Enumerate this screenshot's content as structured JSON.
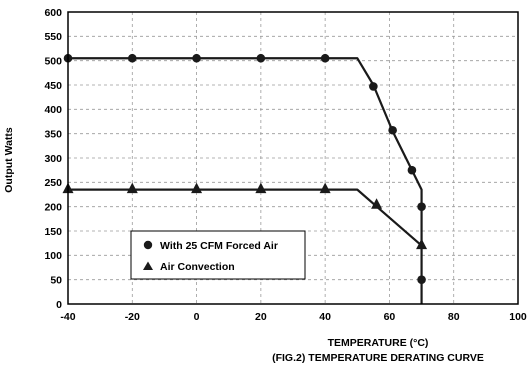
{
  "chart_data": {
    "type": "line",
    "title": "",
    "xlabel": "TEMPERATURE (°C)",
    "ylabel": "Output Watts",
    "caption": "(FIG.2) TEMPERATURE DERATING CURVE",
    "xlim": [
      -40,
      100
    ],
    "ylim": [
      0,
      600
    ],
    "xticks": [
      -40,
      -20,
      0,
      20,
      40,
      60,
      80,
      100
    ],
    "yticks": [
      0,
      50,
      100,
      150,
      200,
      250,
      300,
      350,
      400,
      450,
      500,
      550,
      600
    ],
    "grid": true,
    "legend_position": "bottom-left",
    "series": [
      {
        "name": "With 25 CFM Forced Air",
        "marker": "circle",
        "color": "#1a1a1a",
        "line": [
          [
            -40,
            505
          ],
          [
            50,
            505
          ],
          [
            55,
            450
          ],
          [
            61,
            355
          ],
          [
            67,
            275
          ],
          [
            70,
            235
          ],
          [
            70,
            0
          ]
        ],
        "markers": [
          [
            -40,
            505
          ],
          [
            -20,
            505
          ],
          [
            0,
            505
          ],
          [
            20,
            505
          ],
          [
            40,
            505
          ],
          [
            55,
            447
          ],
          [
            61,
            357
          ],
          [
            67,
            275
          ],
          [
            70,
            200
          ],
          [
            70,
            50
          ]
        ]
      },
      {
        "name": "Air Convection",
        "marker": "triangle",
        "color": "#1a1a1a",
        "line": [
          [
            -40,
            235
          ],
          [
            50,
            235
          ],
          [
            70,
            120
          ]
        ],
        "markers": [
          [
            -40,
            237
          ],
          [
            -20,
            237
          ],
          [
            0,
            237
          ],
          [
            20,
            237
          ],
          [
            40,
            237
          ],
          [
            56,
            205
          ],
          [
            70,
            122
          ]
        ]
      }
    ]
  }
}
